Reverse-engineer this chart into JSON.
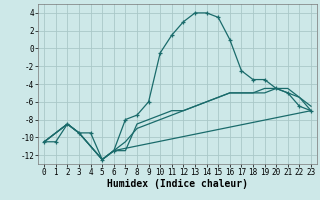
{
  "title": "",
  "xlabel": "Humidex (Indice chaleur)",
  "ylabel": "",
  "bg_color": "#cde8e8",
  "grid_color": "#aac8c8",
  "line_color": "#1a6b6b",
  "xlim": [
    -0.5,
    23.5
  ],
  "ylim": [
    -13,
    5
  ],
  "xticks": [
    0,
    1,
    2,
    3,
    4,
    5,
    6,
    7,
    8,
    9,
    10,
    11,
    12,
    13,
    14,
    15,
    16,
    17,
    18,
    19,
    20,
    21,
    22,
    23
  ],
  "yticks": [
    -12,
    -10,
    -8,
    -6,
    -4,
    -2,
    0,
    2,
    4
  ],
  "line1_x": [
    0,
    1,
    2,
    3,
    4,
    5,
    6,
    7,
    8,
    9,
    10,
    11,
    12,
    13,
    14,
    15,
    16,
    17,
    18,
    19,
    20,
    21,
    22,
    23
  ],
  "line1_y": [
    -10.5,
    -10.5,
    -8.5,
    -9.5,
    -9.5,
    -12.5,
    -11.5,
    -8.0,
    -7.5,
    -6.0,
    -0.5,
    1.5,
    3.0,
    4.0,
    4.0,
    3.5,
    1.0,
    -2.5,
    -3.5,
    -3.5,
    -4.5,
    -5.0,
    -6.5,
    -7.0
  ],
  "line2_x": [
    0,
    2,
    3,
    5,
    6,
    7,
    8,
    9,
    10,
    11,
    12,
    13,
    14,
    15,
    16,
    17,
    18,
    19,
    20,
    21,
    22,
    23
  ],
  "line2_y": [
    -10.5,
    -8.5,
    -9.5,
    -12.5,
    -11.5,
    -11.5,
    -8.5,
    -8.0,
    -7.5,
    -7.0,
    -7.0,
    -6.5,
    -6.0,
    -5.5,
    -5.0,
    -5.0,
    -5.0,
    -5.0,
    -4.5,
    -5.0,
    -5.5,
    -7.0
  ],
  "line3_x": [
    0,
    2,
    3,
    5,
    6,
    7,
    8,
    9,
    10,
    11,
    12,
    13,
    14,
    15,
    16,
    17,
    18,
    19,
    20,
    21,
    22,
    23
  ],
  "line3_y": [
    -10.5,
    -8.5,
    -9.5,
    -12.5,
    -11.5,
    -10.5,
    -9.0,
    -8.5,
    -8.0,
    -7.5,
    -7.0,
    -6.5,
    -6.0,
    -5.5,
    -5.0,
    -5.0,
    -5.0,
    -4.5,
    -4.5,
    -4.5,
    -5.5,
    -6.5
  ],
  "line4_x": [
    0,
    2,
    3,
    5,
    6,
    23
  ],
  "line4_y": [
    -10.5,
    -8.5,
    -9.5,
    -12.5,
    -11.5,
    -7.0
  ]
}
